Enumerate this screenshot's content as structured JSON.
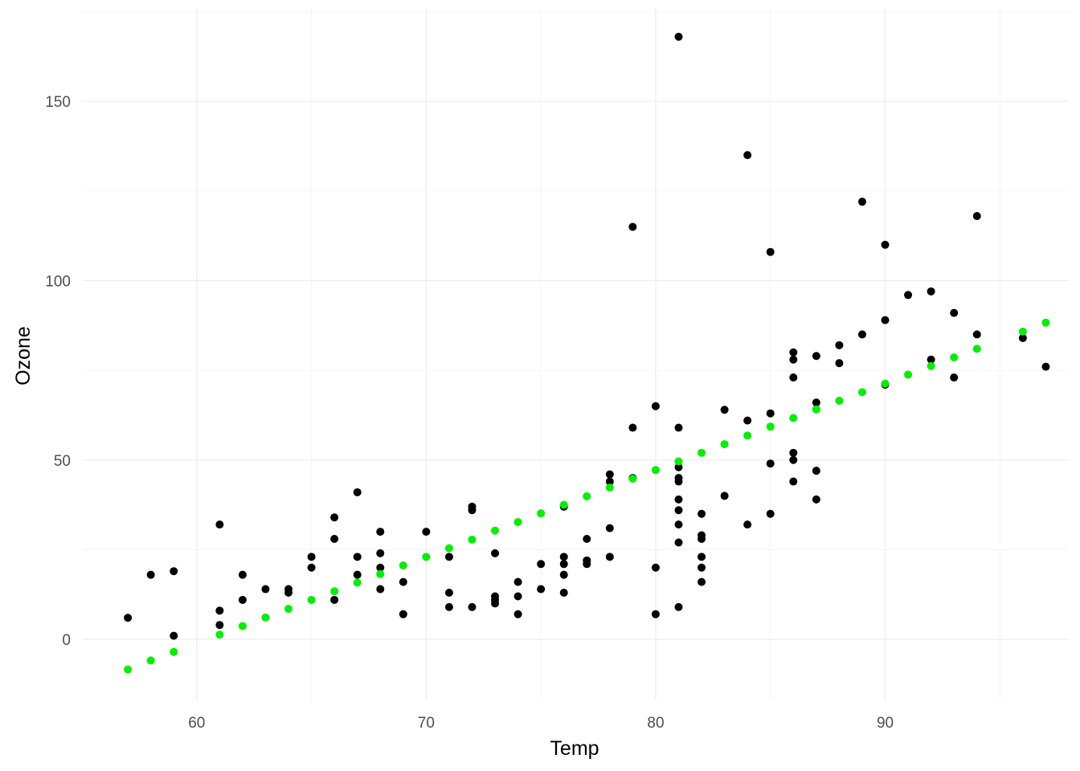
{
  "chart_data": {
    "type": "scatter",
    "title": "",
    "xlabel": "Temp",
    "ylabel": "Ozone",
    "xlim": [
      55,
      98
    ],
    "ylim": [
      -17,
      176
    ],
    "x_ticks": [
      60,
      70,
      80,
      90
    ],
    "y_ticks": [
      0,
      50,
      100,
      150
    ],
    "x_tick_labels": [
      "60",
      "70",
      "80",
      "90"
    ],
    "y_tick_labels": [
      "0",
      "50",
      "100",
      "150"
    ],
    "grid": true,
    "legend": "none",
    "series": [
      {
        "color": "#000000",
        "points": [
          [
            57,
            6
          ],
          [
            58,
            18
          ],
          [
            59,
            1
          ],
          [
            59,
            19
          ],
          [
            61,
            4
          ],
          [
            61,
            8
          ],
          [
            61,
            32
          ],
          [
            62,
            11
          ],
          [
            62,
            18
          ],
          [
            63,
            14
          ],
          [
            64,
            13
          ],
          [
            64,
            14
          ],
          [
            65,
            20
          ],
          [
            65,
            23
          ],
          [
            66,
            11
          ],
          [
            66,
            28
          ],
          [
            66,
            34
          ],
          [
            67,
            18
          ],
          [
            67,
            23
          ],
          [
            67,
            41
          ],
          [
            68,
            14
          ],
          [
            68,
            20
          ],
          [
            68,
            24
          ],
          [
            68,
            30
          ],
          [
            69,
            7
          ],
          [
            69,
            16
          ],
          [
            70,
            30
          ],
          [
            71,
            9
          ],
          [
            71,
            13
          ],
          [
            71,
            23
          ],
          [
            72,
            9
          ],
          [
            72,
            36
          ],
          [
            72,
            37
          ],
          [
            73,
            10
          ],
          [
            73,
            11
          ],
          [
            73,
            12
          ],
          [
            73,
            24
          ],
          [
            74,
            7
          ],
          [
            74,
            12
          ],
          [
            74,
            16
          ],
          [
            75,
            14
          ],
          [
            75,
            21
          ],
          [
            76,
            13
          ],
          [
            76,
            18
          ],
          [
            76,
            21
          ],
          [
            76,
            23
          ],
          [
            76,
            37
          ],
          [
            77,
            21
          ],
          [
            77,
            22
          ],
          [
            77,
            28
          ],
          [
            78,
            23
          ],
          [
            78,
            31
          ],
          [
            78,
            44
          ],
          [
            78,
            46
          ],
          [
            79,
            45
          ],
          [
            79,
            59
          ],
          [
            79,
            115
          ],
          [
            80,
            7
          ],
          [
            80,
            20
          ],
          [
            80,
            65
          ],
          [
            81,
            9
          ],
          [
            81,
            27
          ],
          [
            81,
            32
          ],
          [
            81,
            36
          ],
          [
            81,
            39
          ],
          [
            81,
            44
          ],
          [
            81,
            45
          ],
          [
            81,
            48
          ],
          [
            81,
            59
          ],
          [
            81,
            168
          ],
          [
            82,
            16
          ],
          [
            82,
            20
          ],
          [
            82,
            23
          ],
          [
            82,
            28
          ],
          [
            82,
            29
          ],
          [
            82,
            35
          ],
          [
            83,
            40
          ],
          [
            83,
            64
          ],
          [
            84,
            32
          ],
          [
            84,
            61
          ],
          [
            84,
            135
          ],
          [
            85,
            35
          ],
          [
            85,
            49
          ],
          [
            85,
            63
          ],
          [
            85,
            108
          ],
          [
            86,
            44
          ],
          [
            86,
            50
          ],
          [
            86,
            52
          ],
          [
            86,
            73
          ],
          [
            86,
            78
          ],
          [
            86,
            80
          ],
          [
            87,
            39
          ],
          [
            87,
            47
          ],
          [
            87,
            66
          ],
          [
            87,
            79
          ],
          [
            88,
            77
          ],
          [
            88,
            82
          ],
          [
            89,
            85
          ],
          [
            89,
            122
          ],
          [
            90,
            71
          ],
          [
            90,
            89
          ],
          [
            90,
            110
          ],
          [
            91,
            96
          ],
          [
            92,
            78
          ],
          [
            92,
            97
          ],
          [
            93,
            73
          ],
          [
            93,
            91
          ],
          [
            94,
            85
          ],
          [
            94,
            118
          ],
          [
            96,
            84
          ],
          [
            97,
            76
          ]
        ]
      },
      {
        "color": "#00ee00",
        "points": [
          [
            57,
            -8.4
          ],
          [
            58,
            -5.9
          ],
          [
            59,
            -3.5
          ],
          [
            61,
            1.3
          ],
          [
            62,
            3.7
          ],
          [
            63,
            6.1
          ],
          [
            64,
            8.5
          ],
          [
            65,
            11.0
          ],
          [
            66,
            13.4
          ],
          [
            67,
            15.8
          ],
          [
            68,
            18.2
          ],
          [
            69,
            20.6
          ],
          [
            70,
            23.0
          ],
          [
            71,
            25.4
          ],
          [
            72,
            27.8
          ],
          [
            73,
            30.3
          ],
          [
            74,
            32.7
          ],
          [
            75,
            35.1
          ],
          [
            76,
            37.5
          ],
          [
            77,
            39.9
          ],
          [
            78,
            42.3
          ],
          [
            79,
            44.8
          ],
          [
            80,
            47.2
          ],
          [
            81,
            49.6
          ],
          [
            82,
            52.0
          ],
          [
            83,
            54.4
          ],
          [
            84,
            56.8
          ],
          [
            85,
            59.3
          ],
          [
            86,
            61.7
          ],
          [
            87,
            64.1
          ],
          [
            88,
            66.5
          ],
          [
            89,
            68.9
          ],
          [
            90,
            71.3
          ],
          [
            91,
            73.8
          ],
          [
            92,
            76.2
          ],
          [
            93,
            78.6
          ],
          [
            94,
            81.0
          ],
          [
            96,
            85.8
          ],
          [
            97,
            88.3
          ]
        ]
      }
    ]
  }
}
